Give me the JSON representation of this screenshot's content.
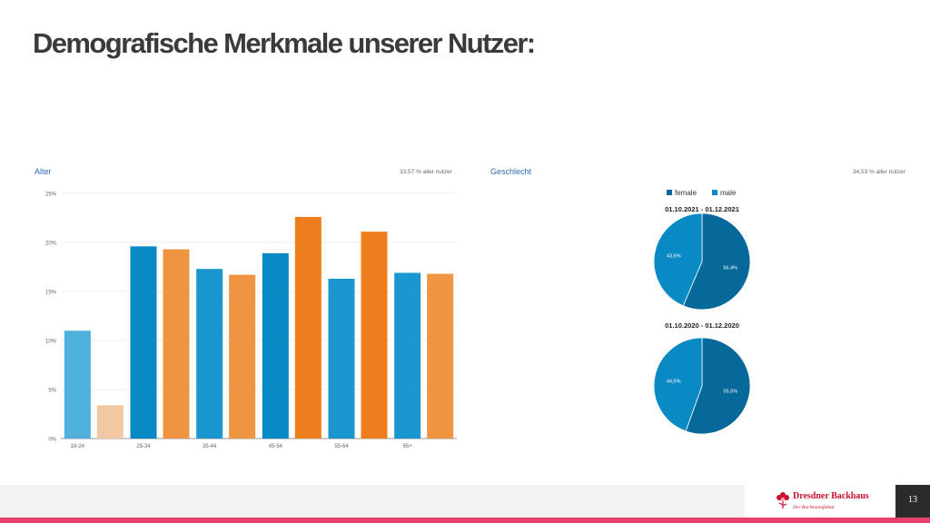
{
  "page": {
    "title": "Demografische Merkmale unserer Nutzer:",
    "page_number": "13"
  },
  "age_panel": {
    "label": "Alter",
    "note": "33,57 % aller nutzer"
  },
  "gender_panel": {
    "label": "Geschlecht",
    "note": "34,53 % aller nutzer",
    "legend": [
      "female",
      "male"
    ]
  },
  "branding": {
    "name": "Dresdner Backhaus",
    "tagline": "Der Backmanufaktur"
  },
  "chart_data": [
    {
      "type": "bar",
      "title": "Alter",
      "categories": [
        "18-24",
        "25-34",
        "35-44",
        "45-54",
        "55-64",
        "65+"
      ],
      "series": [
        {
          "values": [
            11.0,
            19.6,
            17.3,
            18.9,
            16.3,
            16.9
          ]
        },
        {
          "values": [
            3.4,
            19.3,
            16.7,
            22.6,
            21.1,
            16.8
          ]
        }
      ],
      "yticks": [
        "0%",
        "5%",
        "10%",
        "15%",
        "20%",
        "25%"
      ],
      "ylim": [
        0,
        25
      ],
      "grid": true,
      "colors": {
        "series_a": [
          "#4fb0dc",
          "#0a8ac4",
          "#1a97cf",
          "#0a8ac4",
          "#1a97cf",
          "#1a97cf"
        ],
        "series_b": [
          "#f2c8a4",
          "#ef9542",
          "#ef9542",
          "#ec7e1c",
          "#ec7e1c",
          "#ef9542"
        ]
      }
    },
    {
      "type": "pie",
      "title": "01.10.2021 - 01.12.2021",
      "labels": [
        "female",
        "male"
      ],
      "values": [
        56.4,
        43.6
      ],
      "value_labels": [
        "56,4%",
        "43,6%"
      ],
      "colors": [
        "#07699a",
        "#0a8ac4"
      ]
    },
    {
      "type": "pie",
      "title": "01.10.2020 - 01.12.2020",
      "labels": [
        "female",
        "male"
      ],
      "values": [
        55.5,
        44.5
      ],
      "value_labels": [
        "55,5%",
        "44,5%"
      ],
      "colors": [
        "#07699a",
        "#0a8ac4"
      ]
    }
  ]
}
